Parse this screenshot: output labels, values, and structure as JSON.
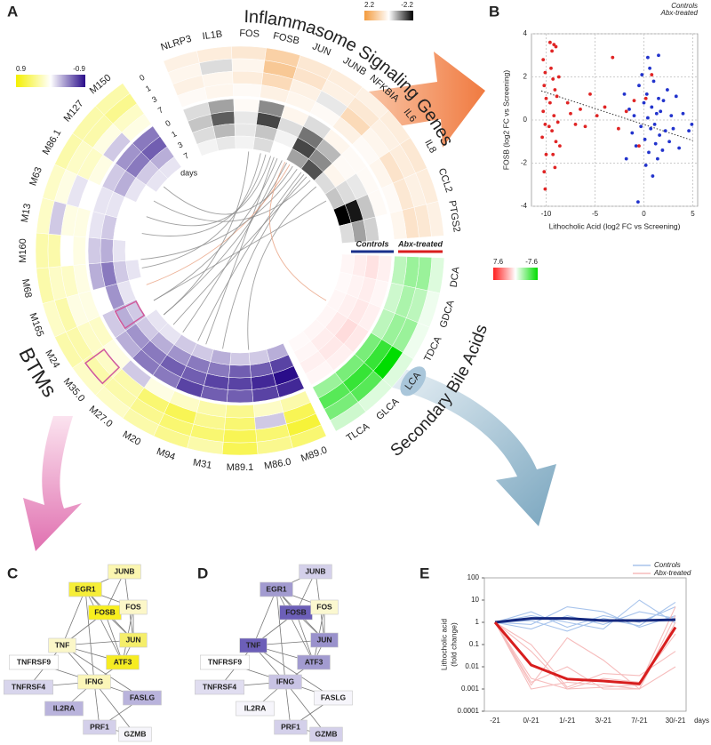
{
  "panel_labels": [
    "A",
    "B",
    "C",
    "D",
    "E"
  ],
  "chart_data": [
    {
      "type": "circos",
      "times": [
        0,
        1,
        3,
        7
      ],
      "time_label": "days",
      "group_labels": {
        "controls": "Controls",
        "abx": "Abx-treated"
      },
      "annotation": "LCA",
      "sectors": [
        {
          "title": "Inflammasome Signaling Genes",
          "categories": [
            "NLRP3",
            "IL1B",
            "FOS",
            "FOSB",
            "JUN",
            "JUNB",
            "NFKBIA",
            "IL6",
            "IL8",
            "CCL2",
            "PTGS2"
          ],
          "clim": [
            2.2,
            -2.2
          ],
          "colors": [
            "#f39a3c",
            "#ffffff",
            "#000000"
          ],
          "rings": [
            [
              [
                0.3,
                0.4,
                0.5,
                1.0,
                0.5,
                0.4,
                0.3,
                0.4,
                0.5,
                0.4,
                0.3
              ],
              [
                0.2,
                -0.3,
                0.2,
                1.2,
                0.6,
                0.3,
                0.5,
                0.3,
                0.4,
                0.3,
                0.5
              ],
              [
                0.3,
                0.2,
                0.4,
                0.8,
                0.3,
                -0.2,
                0.8,
                0.2,
                0.6,
                0.5,
                0.6
              ],
              [
                0.1,
                0.2,
                0.1,
                0.3,
                0.2,
                0.1,
                0.3,
                0.1,
                0.2,
                0.1,
                0.2
              ]
            ],
            [
              [
                -0.3,
                -0.8,
                0.1,
                -1.0,
                0.2,
                -0.3,
                0.2,
                0.1,
                0.1,
                0.1,
                0.0
              ],
              [
                -0.5,
                -1.4,
                -0.2,
                -1.6,
                -0.3,
                -1.2,
                -0.6,
                0.1,
                -0.2,
                -0.5,
                -0.4
              ],
              [
                -0.3,
                -0.6,
                -0.2,
                -0.5,
                -0.1,
                -1.6,
                -1.0,
                0.2,
                -0.3,
                -2.0,
                -0.8
              ],
              [
                -0.1,
                -0.2,
                -0.1,
                -0.3,
                0.0,
                -0.8,
                -1.5,
                -0.3,
                -0.5,
                -2.2,
                -0.3
              ]
            ]
          ]
        },
        {
          "title": "BTMs",
          "categories": [
            "M89.0",
            "M86.0",
            "M89.1",
            "M31",
            "M94",
            "M20",
            "M27.0",
            "M35.0",
            "M24",
            "M165",
            "M68",
            "M160",
            "M13",
            "M63",
            "M86.1",
            "M127",
            "M150"
          ],
          "clim": [
            0.9,
            -0.9
          ],
          "colors": [
            "#f4f000",
            "#ffffff",
            "#2a0d8a"
          ],
          "rings": [
            [
              [
                0.5,
                0.4,
                0.6,
                0.3,
                0.4,
                0.3,
                0.2,
                0.2,
                0.3,
                0.2,
                0.3,
                0.3,
                0.2,
                0.2,
                0.3,
                0.3,
                0.3
              ],
              [
                0.7,
                0.5,
                0.6,
                0.5,
                0.5,
                0.4,
                0.3,
                0.3,
                0.3,
                0.3,
                0.2,
                0.3,
                -0.2,
                0.1,
                0.2,
                0.3,
                0.4
              ],
              [
                0.6,
                -0.2,
                0.5,
                0.4,
                0.6,
                0.5,
                0.3,
                0.2,
                0.2,
                0.1,
                0.2,
                0.0,
                0.1,
                -0.1,
                0.2,
                0.1,
                0.2
              ],
              [
                0.3,
                0.2,
                0.4,
                0.3,
                0.2,
                0.1,
                -0.2,
                0.1,
                0.2,
                0.1,
                0.1,
                0.1,
                0.1,
                0.0,
                0.1,
                -0.2,
                0.1
              ]
            ],
            [
              [
                -0.8,
                -0.7,
                -0.6,
                -0.6,
                -0.7,
                -0.5,
                -0.5,
                -0.3,
                -0.2,
                0.0,
                -0.3,
                -0.2,
                -0.1,
                -0.1,
                -0.2,
                -0.4,
                -0.5
              ],
              [
                -0.9,
                -0.8,
                -0.7,
                -0.7,
                -0.6,
                -0.6,
                -0.5,
                -0.4,
                -0.3,
                -0.4,
                -0.5,
                -0.3,
                -0.2,
                -0.1,
                -0.3,
                -0.5,
                -0.6
              ],
              [
                -0.7,
                -0.6,
                -0.6,
                -0.5,
                -0.5,
                -0.4,
                -0.3,
                -0.2,
                -0.2,
                -0.1,
                -0.2,
                -0.1,
                0.0,
                0.0,
                -0.1,
                -0.2,
                -0.3
              ],
              [
                -0.3,
                -0.2,
                -0.2,
                -0.3,
                -0.2,
                -0.2,
                -0.1,
                -0.1,
                0.0,
                0.0,
                -0.1,
                0.0,
                0.0,
                0.0,
                0.0,
                -0.1,
                -0.1
              ]
            ]
          ]
        },
        {
          "title": "Secondary Bile Acids",
          "categories": [
            "DCA",
            "GDCA",
            "TDCA",
            null,
            "GLCA",
            "TLCA"
          ],
          "clim": [
            7.6,
            -7.6
          ],
          "colors": [
            "#ff2020",
            "#ffffff",
            "#00dd00"
          ],
          "rings": [
            [
              [
                -1.0,
                -0.5,
                -0.5,
                -1.0,
                -1.0,
                -1.5
              ],
              [
                -3.0,
                -2.0,
                -3.0,
                -7.6,
                -5.0,
                -4.0
              ],
              [
                -3.0,
                -2.5,
                -3.0,
                -6.0,
                -6.0,
                -5.0
              ],
              [
                -2.0,
                -1.5,
                -2.0,
                -4.0,
                -4.0,
                -3.0
              ]
            ],
            [
              [
                0.5,
                0.3,
                0.5,
                0.8,
                0.5,
                0.3
              ],
              [
                1.0,
                0.6,
                0.8,
                1.2,
                0.8,
                0.5
              ],
              [
                0.6,
                0.4,
                0.5,
                0.7,
                0.6,
                0.3
              ],
              [
                0.3,
                0.2,
                0.3,
                0.3,
                0.3,
                0.2
              ]
            ]
          ]
        }
      ]
    },
    {
      "type": "scatter",
      "x_label": "Lithocholic Acid (log2 FC vs Screening)",
      "y_label": "FOSB (log2 FC vs Screening)",
      "xlim": [
        -11.5,
        5.5
      ],
      "ylim": [
        -4,
        4
      ],
      "xticks": [
        -10,
        -5,
        0,
        5
      ],
      "yticks": [
        -4,
        -2,
        0,
        2,
        4
      ],
      "grid": true,
      "legend": "top-right",
      "series": [
        {
          "name": "Controls",
          "color": "#2233cc",
          "x": [
            -2,
            -1.5,
            -1.2,
            -1.8,
            -1.0,
            -0.8,
            -0.5,
            -0.3,
            -0.2,
            0.0,
            0.1,
            0.2,
            0.3,
            0.4,
            0.5,
            0.6,
            0.7,
            0.8,
            0.9,
            1.0,
            1.1,
            1.2,
            1.3,
            1.4,
            1.5,
            1.6,
            1.7,
            1.9,
            2.0,
            2.2,
            2.4,
            2.6,
            2.8,
            3.0,
            3.3,
            3.6,
            4.0,
            4.6,
            4.9,
            -0.6,
            0.4,
            1.5
          ],
          "y": [
            1.2,
            0.5,
            -0.6,
            -1.8,
            0.2,
            -1.2,
            1.6,
            -0.3,
            2.1,
            0.8,
            -0.9,
            -2.1,
            1.2,
            0.1,
            -1.5,
            2.4,
            -0.4,
            0.6,
            -2.6,
            1.8,
            -0.2,
            -1.1,
            0.3,
            -1.8,
            1.0,
            -0.7,
            0.4,
            -1.4,
            0.9,
            -0.5,
            1.4,
            -1.0,
            0.2,
            -0.4,
            1.1,
            -1.3,
            0.3,
            -0.5,
            -0.2,
            -3.8,
            2.9,
            3.0
          ]
        },
        {
          "name": "Abx-treated",
          "color": "#e02424",
          "x": [
            -10.3,
            -10.1,
            -10.2,
            -10.0,
            -10.3,
            -10.1,
            -10.4,
            -10.0,
            -10.2,
            -10.1,
            -9.6,
            -9.4,
            -9.2,
            -9.0,
            -9.5,
            -9.3,
            -9.1,
            -8.9,
            -9.6,
            -9.2,
            -9.4,
            -9.0,
            -9.3,
            -9.1,
            -8.8,
            -8.7,
            -8.6,
            -9.7,
            -7.8,
            -7.5,
            -7.0,
            -6.5,
            -6.0,
            -5.5,
            -4.8,
            -4.0,
            -3.2,
            -2.6,
            -1.8,
            -1.0,
            -0.5,
            0.2,
            0.8
          ],
          "y": [
            2.8,
            2.2,
            1.6,
            1.0,
            0.4,
            -0.2,
            -0.8,
            -1.6,
            -2.4,
            -3.2,
            3.6,
            3.2,
            3.5,
            3.4,
            2.4,
            1.9,
            1.4,
            1.1,
            0.8,
            0.2,
            -0.5,
            -1.0,
            -1.6,
            -2.2,
            -0.1,
            2.0,
            -1.2,
            -0.3,
            0.8,
            0.3,
            -0.2,
            0.5,
            -0.3,
            1.2,
            0.2,
            0.6,
            2.9,
            -0.4,
            0.4,
            0.9,
            -1.2,
            1.0,
            2.1
          ]
        }
      ],
      "trend_line": {
        "x": [
          -10.5,
          5
        ],
        "y": [
          1.35,
          -0.95
        ]
      }
    },
    {
      "type": "network",
      "nodes": [
        {
          "label": "JUNB",
          "color": "#fbf6b0"
        },
        {
          "label": "EGR1",
          "color": "#f6ee38"
        },
        {
          "label": "FOSB",
          "color": "#f8ef1e"
        },
        {
          "label": "FOS",
          "color": "#fcf7c8"
        },
        {
          "label": "TNF",
          "color": "#fbf7c8"
        },
        {
          "label": "JUN",
          "color": "#f5ee6a"
        },
        {
          "label": "ATF3",
          "color": "#f6ec22"
        },
        {
          "label": "TNFRSF9",
          "color": "#ffffff"
        },
        {
          "label": "TNFRSF4",
          "color": "#d8d5ec"
        },
        {
          "label": "IFNG",
          "color": "#fbf6b8"
        },
        {
          "label": "IL2RA",
          "color": "#b9b3dc"
        },
        {
          "label": "FASLG",
          "color": "#b9b3dc"
        },
        {
          "label": "PRF1",
          "color": "#d4d0ea"
        },
        {
          "label": "GZMB",
          "color": "#f6f5fb"
        }
      ]
    },
    {
      "type": "network",
      "nodes": [
        {
          "label": "JUNB",
          "color": "#d4d0ea"
        },
        {
          "label": "EGR1",
          "color": "#a29bd0"
        },
        {
          "label": "FOSB",
          "color": "#6c5fb8"
        },
        {
          "label": "FOS",
          "color": "#fbf8d0"
        },
        {
          "label": "TNF",
          "color": "#6c5fb8"
        },
        {
          "label": "JUN",
          "color": "#9a92cc"
        },
        {
          "label": "ATF3",
          "color": "#a29bd0"
        },
        {
          "label": "TNFRSF9",
          "color": "#ffffff"
        },
        {
          "label": "TNFRSF4",
          "color": "#e0ddf0"
        },
        {
          "label": "IFNG",
          "color": "#c8c3e4"
        },
        {
          "label": "IL2RA",
          "color": "#f6f5fb"
        },
        {
          "label": "FASLG",
          "color": "#f6f5fb"
        },
        {
          "label": "PRF1",
          "color": "#d4d0ea"
        },
        {
          "label": "GZMB",
          "color": "#d4d0ea"
        }
      ]
    },
    {
      "type": "line",
      "y_label": [
        "Lithocholic acid",
        "(fold change)"
      ],
      "categories": [
        "-21",
        "0/-21",
        "1/-21",
        "3/-21",
        "7/-21",
        "30/-21"
      ],
      "x_unit": "days",
      "ylog": true,
      "ylim": [
        0.0001,
        100
      ],
      "yticks": [
        0.0001,
        0.001,
        0.01,
        0.1,
        1,
        10,
        100
      ],
      "legend": "top-right",
      "series": [
        {
          "name": "Controls",
          "color": "#14287e",
          "light_color": "#a8c4ec",
          "values": [
            1,
            1.5,
            1.5,
            1.2,
            1.2,
            1.3
          ],
          "subjects": [
            [
              1,
              3,
              0.6,
              2,
              1,
              5
            ],
            [
              1,
              0.5,
              2,
              0.8,
              3,
              1.5
            ],
            [
              1,
              1.2,
              0.4,
              1.5,
              0.7,
              8
            ],
            [
              1,
              2,
              1,
              0.5,
              10,
              0.9
            ],
            [
              1,
              0.8,
              5,
              3,
              0.6,
              2
            ]
          ]
        },
        {
          "name": "Abx-treated",
          "color": "#d81e1e",
          "light_color": "#f6bcbc",
          "values": [
            1,
            0.012,
            0.0028,
            0.0023,
            0.0017,
            0.6
          ],
          "subjects": [
            [
              1,
              0.001,
              0.002,
              0.0015,
              0.001,
              2
            ],
            [
              1,
              0.05,
              0.001,
              0.003,
              0.002,
              0.3
            ],
            [
              1,
              0.002,
              0.01,
              0.001,
              0.001,
              1
            ],
            [
              1,
              0.1,
              0.0012,
              0.005,
              0.004,
              0.05
            ],
            [
              1,
              0.003,
              0.001,
              0.0012,
              0.0015,
              5
            ],
            [
              1,
              0.0015,
              0.2,
              0.02,
              0.001,
              0.01
            ]
          ]
        }
      ]
    }
  ]
}
